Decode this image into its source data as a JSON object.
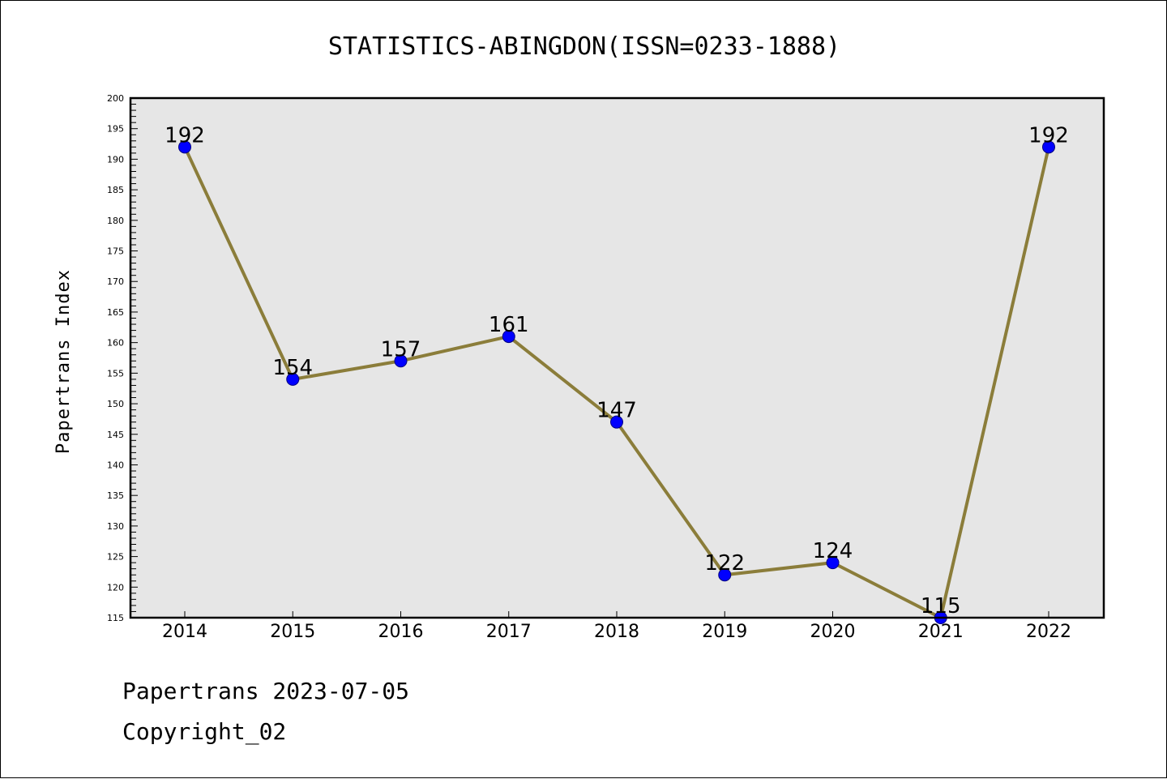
{
  "chart_data": {
    "type": "line",
    "title": "STATISTICS-ABINGDON(ISSN=0233-1888)",
    "ylabel": "Papertrans Index",
    "xlabel": "",
    "x": [
      "2014",
      "2015",
      "2016",
      "2017",
      "2018",
      "2019",
      "2020",
      "2021",
      "2022"
    ],
    "series": [
      {
        "values": [
          192,
          154,
          157,
          161,
          147,
          122,
          124,
          115,
          192
        ]
      }
    ],
    "ylim": [
      115,
      200
    ],
    "yticks": [
      115,
      120,
      125,
      130,
      135,
      140,
      145,
      150,
      155,
      160,
      165,
      170,
      175,
      180,
      185,
      190,
      195,
      200
    ],
    "data_labels": true,
    "grid": false,
    "colors": {
      "plot_background": "#e6e6e6",
      "line": "#8b7d3a",
      "marker_fill": "#0000ff",
      "marker_edge": "#000080"
    }
  },
  "footer": {
    "date_line": "Papertrans 2023-07-05",
    "copyright_line": "Copyright_02"
  }
}
